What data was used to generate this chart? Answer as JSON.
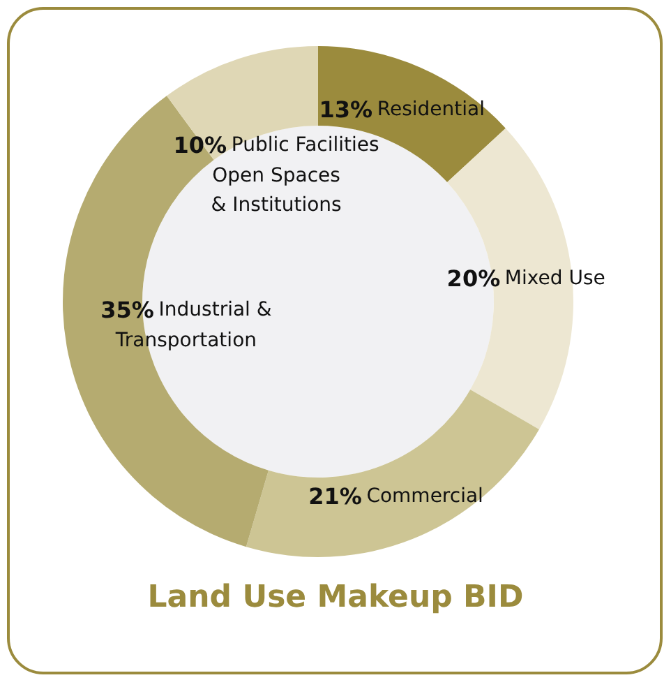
{
  "chart_data": {
    "type": "donut",
    "title": "Land Use Makeup BID",
    "categories": [
      "Residential",
      "Mixed Use",
      "Commercial",
      "Industrial &\nTransportation",
      "Public Facilities\nOpen Spaces\n& Institutions"
    ],
    "values": [
      13,
      20,
      21,
      35,
      10
    ],
    "value_labels": [
      "13%",
      "20%",
      "21%",
      "35%",
      "10%"
    ],
    "colors": [
      "#9b8b3d",
      "#ede7d2",
      "#cdc594",
      "#b5ab70",
      "#dfd7b5"
    ],
    "legend": false
  }
}
